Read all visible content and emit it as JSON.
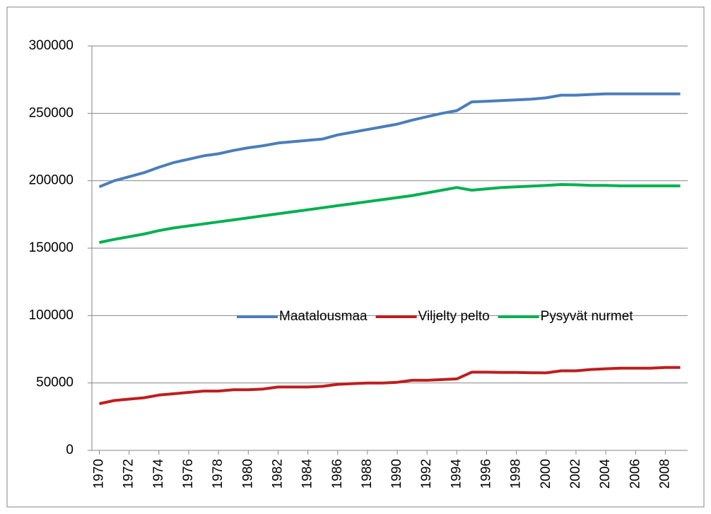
{
  "chart_data": {
    "type": "line",
    "x": [
      1970,
      1971,
      1972,
      1973,
      1974,
      1975,
      1976,
      1977,
      1978,
      1979,
      1980,
      1981,
      1982,
      1983,
      1984,
      1985,
      1986,
      1987,
      1988,
      1989,
      1990,
      1991,
      1992,
      1993,
      1994,
      1995,
      1996,
      1997,
      1998,
      1999,
      2000,
      2001,
      2002,
      2003,
      2004,
      2005,
      2006,
      2007,
      2008,
      2009
    ],
    "series": [
      {
        "name": "Maatalousmaa",
        "color": "#4a7ebb",
        "values": [
          195500,
          200000,
          203000,
          206000,
          210000,
          213500,
          216000,
          218500,
          220000,
          222500,
          224500,
          226000,
          228000,
          229000,
          230000,
          231000,
          234000,
          236000,
          238000,
          240000,
          242000,
          245000,
          247500,
          250000,
          252000,
          258500,
          259000,
          259500,
          260000,
          260500,
          261500,
          263500,
          263500,
          264000,
          264500,
          264500,
          264500,
          264500,
          264500,
          264500
        ]
      },
      {
        "name": "Viljelty pelto",
        "color": "#be1e1e",
        "values": [
          34600,
          37000,
          38000,
          39000,
          41000,
          42000,
          43000,
          44000,
          44000,
          45000,
          45000,
          45500,
          47000,
          47000,
          47000,
          47500,
          49000,
          49500,
          50000,
          50000,
          50500,
          52000,
          52000,
          52500,
          53000,
          58000,
          58000,
          57800,
          57800,
          57600,
          57500,
          59000,
          59000,
          60000,
          60500,
          61000,
          61000,
          61000,
          61500,
          61500
        ]
      },
      {
        "name": "Pysyvät nurmet",
        "color": "#00b050",
        "values": [
          154200,
          156500,
          158500,
          160500,
          163000,
          165000,
          166500,
          168000,
          169500,
          171000,
          172500,
          174000,
          175500,
          177000,
          178500,
          180000,
          181500,
          183000,
          184500,
          186000,
          187500,
          189000,
          191000,
          193000,
          195000,
          193000,
          194000,
          195000,
          195500,
          196000,
          196500,
          197200,
          197000,
          196500,
          196500,
          196200,
          196200,
          196200,
          196200,
          196200
        ]
      }
    ],
    "xlim": [
      1969.5,
      2009.5
    ],
    "xticks": [
      1970,
      1972,
      1974,
      1976,
      1978,
      1980,
      1982,
      1984,
      1986,
      1988,
      1990,
      1992,
      1994,
      1996,
      1998,
      2000,
      2002,
      2004,
      2006,
      2008
    ],
    "ylim": [
      0,
      300000
    ],
    "yticks": [
      0,
      50000,
      100000,
      150000,
      200000,
      250000,
      300000
    ],
    "grid": true,
    "legend": "center"
  }
}
